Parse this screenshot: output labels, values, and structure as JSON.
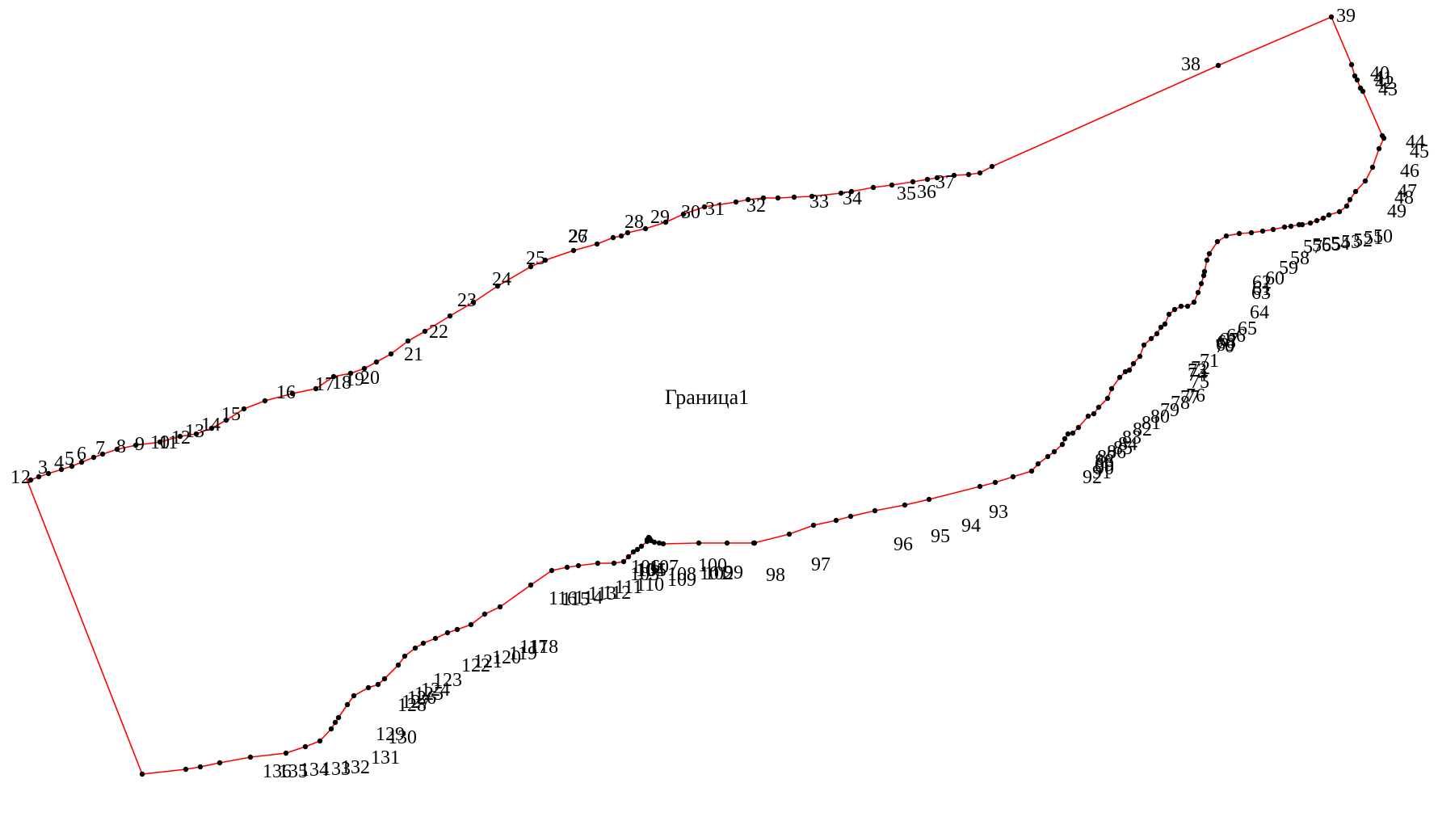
{
  "plot": {
    "title": "Граница1",
    "boundary_color": "#ff0000",
    "point_color": "#000000",
    "points": [
      {
        "n": "1"
      },
      {
        "n": "2"
      },
      {
        "n": "3"
      },
      {
        "n": "4"
      },
      {
        "n": "5"
      },
      {
        "n": "6"
      },
      {
        "n": "7"
      },
      {
        "n": "8"
      },
      {
        "n": "9"
      },
      {
        "n": "10"
      },
      {
        "n": "11"
      },
      {
        "n": "12"
      },
      {
        "n": "13"
      },
      {
        "n": "14"
      },
      {
        "n": "15"
      },
      {
        "n": "16"
      },
      {
        "n": "17"
      },
      {
        "n": "18"
      },
      {
        "n": "19"
      },
      {
        "n": "20"
      },
      {
        "n": "21"
      },
      {
        "n": "22"
      },
      {
        "n": "23"
      },
      {
        "n": "24"
      },
      {
        "n": "25"
      },
      {
        "n": "26"
      },
      {
        "n": "27"
      },
      {
        "n": "28"
      },
      {
        "n": "29"
      },
      {
        "n": "30"
      },
      {
        "n": "31"
      },
      {
        "n": "32"
      },
      {
        "n": "33"
      },
      {
        "n": "34"
      },
      {
        "n": "35"
      },
      {
        "n": "36"
      },
      {
        "n": "37"
      },
      {
        "n": "38"
      },
      {
        "n": "39"
      },
      {
        "n": "40"
      },
      {
        "n": "41"
      },
      {
        "n": "42"
      },
      {
        "n": "43"
      },
      {
        "n": "44"
      },
      {
        "n": "45"
      },
      {
        "n": "46"
      },
      {
        "n": "47"
      },
      {
        "n": "48"
      },
      {
        "n": "49"
      },
      {
        "n": "50"
      },
      {
        "n": "51"
      },
      {
        "n": "52"
      },
      {
        "n": "53"
      },
      {
        "n": "54"
      },
      {
        "n": "55"
      },
      {
        "n": "56"
      },
      {
        "n": "57"
      },
      {
        "n": "58"
      },
      {
        "n": "59"
      },
      {
        "n": "60"
      },
      {
        "n": "61"
      },
      {
        "n": "62"
      },
      {
        "n": "63"
      },
      {
        "n": "64"
      },
      {
        "n": "65"
      },
      {
        "n": "66"
      },
      {
        "n": "67"
      },
      {
        "n": "68"
      },
      {
        "n": "69"
      },
      {
        "n": "70"
      },
      {
        "n": "71"
      },
      {
        "n": "72"
      },
      {
        "n": "73"
      },
      {
        "n": "74"
      },
      {
        "n": "75"
      },
      {
        "n": "76"
      },
      {
        "n": "77"
      },
      {
        "n": "78"
      },
      {
        "n": "79"
      },
      {
        "n": "80"
      },
      {
        "n": "81"
      },
      {
        "n": "82"
      },
      {
        "n": "83"
      },
      {
        "n": "84"
      },
      {
        "n": "85"
      },
      {
        "n": "86"
      },
      {
        "n": "87"
      },
      {
        "n": "88"
      },
      {
        "n": "89"
      },
      {
        "n": "90"
      },
      {
        "n": "91"
      },
      {
        "n": "92"
      },
      {
        "n": "93"
      },
      {
        "n": "94"
      },
      {
        "n": "95"
      },
      {
        "n": "96"
      },
      {
        "n": "97"
      },
      {
        "n": "98"
      },
      {
        "n": "99"
      },
      {
        "n": "100"
      },
      {
        "n": "101"
      },
      {
        "n": "102"
      },
      {
        "n": "103"
      },
      {
        "n": "104"
      },
      {
        "n": "105"
      },
      {
        "n": "106"
      },
      {
        "n": "107"
      },
      {
        "n": "108"
      },
      {
        "n": "109"
      },
      {
        "n": "110"
      },
      {
        "n": "111"
      },
      {
        "n": "112"
      },
      {
        "n": "113"
      },
      {
        "n": "114"
      },
      {
        "n": "115"
      },
      {
        "n": "116"
      },
      {
        "n": "117"
      },
      {
        "n": "118"
      },
      {
        "n": "119"
      },
      {
        "n": "120"
      },
      {
        "n": "121"
      },
      {
        "n": "122"
      },
      {
        "n": "123"
      },
      {
        "n": "124"
      },
      {
        "n": "125"
      },
      {
        "n": "126"
      },
      {
        "n": "127"
      },
      {
        "n": "128"
      },
      {
        "n": "129"
      },
      {
        "n": "130"
      },
      {
        "n": "131"
      },
      {
        "n": "132"
      },
      {
        "n": "133"
      },
      {
        "n": "134"
      },
      {
        "n": "135"
      },
      {
        "n": "136"
      }
    ]
  }
}
